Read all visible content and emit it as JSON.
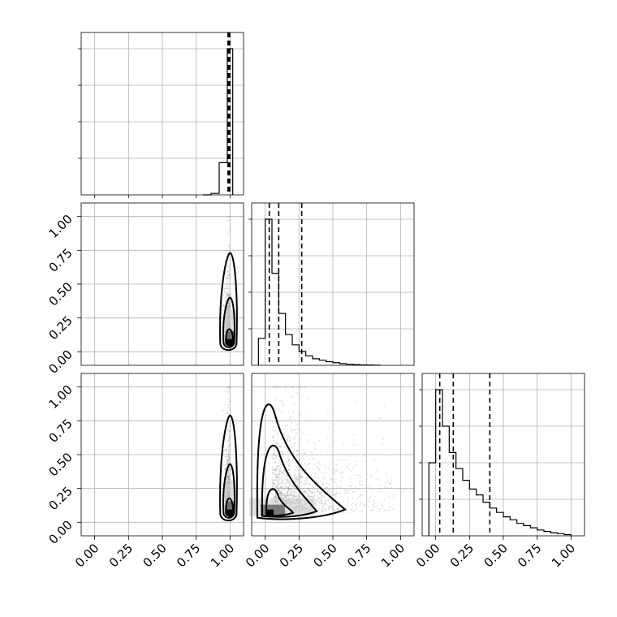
{
  "chart_data": {
    "type": "scatter",
    "title": "",
    "variables": [
      {
        "range": [
          -0.1,
          1.1
        ],
        "tick_labels": [
          "0.00",
          "0.25",
          "0.50",
          "0.75",
          "1.00"
        ]
      },
      {
        "range": [
          -0.1,
          1.1
        ],
        "tick_labels": [
          "0.00",
          "0.25",
          "0.50",
          "0.75",
          "1.00"
        ]
      },
      {
        "range": [
          -0.1,
          1.1
        ],
        "tick_labels": [
          "0.00",
          "0.25",
          "0.50",
          "0.75",
          "1.00"
        ]
      }
    ],
    "histograms": [
      {
        "variable": 0,
        "bin_edges": [
          0.8,
          0.86,
          0.92,
          0.98,
          1.02
        ],
        "counts": [
          0,
          0.01,
          0.22,
          1.0
        ],
        "quantiles": [
          0.985,
          0.993,
          0.999
        ]
      },
      {
        "variable": 1,
        "bin_edges": [
          -0.05,
          0.0,
          0.05,
          0.1,
          0.15,
          0.2,
          0.25,
          0.3,
          0.35,
          0.4,
          0.45,
          0.5,
          0.55,
          0.6,
          0.65,
          0.7,
          0.75,
          0.8,
          0.85
        ],
        "counts": [
          0.185,
          1.0,
          0.63,
          0.355,
          0.21,
          0.14,
          0.095,
          0.065,
          0.045,
          0.035,
          0.025,
          0.018,
          0.012,
          0.008,
          0.005,
          0.003,
          0.002,
          0.001
        ],
        "quantiles": [
          0.03,
          0.1,
          0.27
        ]
      },
      {
        "variable": 2,
        "bin_edges": [
          -0.05,
          0.0,
          0.05,
          0.1,
          0.15,
          0.2,
          0.25,
          0.3,
          0.35,
          0.4,
          0.45,
          0.5,
          0.55,
          0.6,
          0.65,
          0.7,
          0.75,
          0.8,
          0.85,
          0.9,
          0.95,
          1.0
        ],
        "counts": [
          0.5,
          1.0,
          0.75,
          0.57,
          0.46,
          0.38,
          0.32,
          0.28,
          0.23,
          0.19,
          0.16,
          0.13,
          0.11,
          0.085,
          0.07,
          0.055,
          0.04,
          0.03,
          0.02,
          0.015,
          0.008
        ],
        "quantiles": [
          0.03,
          0.13,
          0.4
        ]
      }
    ],
    "pairs": [
      {
        "x_var": 0,
        "y_var": 1,
        "x_center": 1.0,
        "y_center": 0.07,
        "x_spread": 0.02,
        "y_spread_up": 0.55,
        "y_spread_down": 0.06
      },
      {
        "x_var": 0,
        "y_var": 2,
        "x_center": 1.0,
        "y_center": 0.07,
        "x_spread": 0.02,
        "y_spread_up": 0.6,
        "y_spread_down": 0.06
      },
      {
        "x_var": 1,
        "y_var": 2,
        "x_center": 0.05,
        "y_center": 0.07,
        "x_spread": 0.5,
        "y_spread_up": 0.75,
        "y_spread_down": 0.06
      }
    ],
    "grid": true,
    "legend": false,
    "colors": {
      "line": "#000000",
      "grid": "#b0b0b0",
      "points": "#808080",
      "frame": "#000000"
    }
  }
}
